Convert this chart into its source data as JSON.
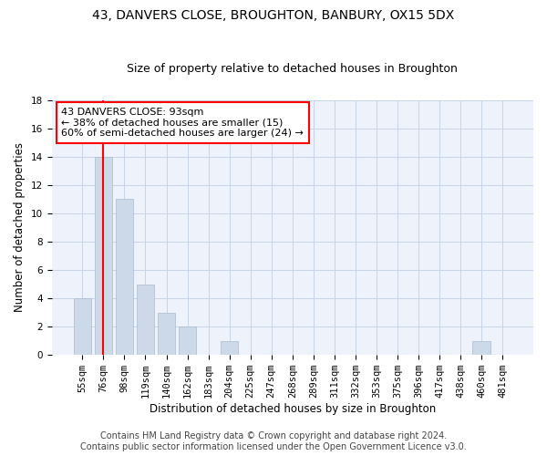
{
  "title1": "43, DANVERS CLOSE, BROUGHTON, BANBURY, OX15 5DX",
  "title2": "Size of property relative to detached houses in Broughton",
  "xlabel": "Distribution of detached houses by size in Broughton",
  "ylabel": "Number of detached properties",
  "categories": [
    "55sqm",
    "76sqm",
    "98sqm",
    "119sqm",
    "140sqm",
    "162sqm",
    "183sqm",
    "204sqm",
    "225sqm",
    "247sqm",
    "268sqm",
    "289sqm",
    "311sqm",
    "332sqm",
    "353sqm",
    "375sqm",
    "396sqm",
    "417sqm",
    "438sqm",
    "460sqm",
    "481sqm"
  ],
  "values": [
    4,
    14,
    11,
    5,
    3,
    2,
    0,
    1,
    0,
    0,
    0,
    0,
    0,
    0,
    0,
    0,
    0,
    0,
    0,
    1,
    0
  ],
  "bar_color": "#ccd9e8",
  "bar_edgecolor": "#aabbd0",
  "grid_color": "#c8d4e8",
  "background_color": "#eef2fa",
  "red_line_x": 1.5,
  "annotation_text": "43 DANVERS CLOSE: 93sqm\n← 38% of detached houses are smaller (15)\n60% of semi-detached houses are larger (24) →",
  "annotation_box_color": "white",
  "annotation_box_edgecolor": "red",
  "ylim": [
    0,
    18
  ],
  "yticks": [
    0,
    2,
    4,
    6,
    8,
    10,
    12,
    14,
    16,
    18
  ],
  "footnote": "Contains HM Land Registry data © Crown copyright and database right 2024.\nContains public sector information licensed under the Open Government Licence v3.0.",
  "title1_fontsize": 10,
  "title2_fontsize": 9,
  "xlabel_fontsize": 8.5,
  "ylabel_fontsize": 8.5,
  "annotation_fontsize": 8,
  "footnote_fontsize": 7,
  "tick_fontsize": 7.5
}
